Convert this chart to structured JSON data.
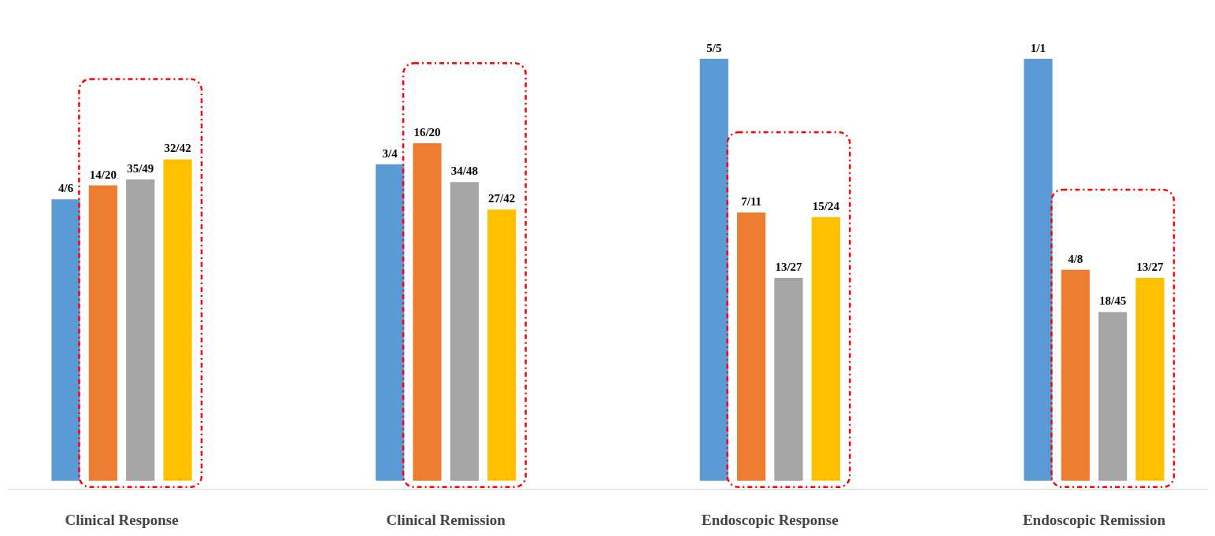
{
  "chart_data": {
    "type": "bar",
    "tick_labels": "x",
    "categories": [
      "Clinical Response",
      "Clinical Remission",
      "Endoscopic Response",
      "Endoscopic Remission"
    ],
    "series": [
      {
        "color": "#5b9bd5",
        "values": [
          0.667,
          0.75,
          1.0,
          1.0
        ],
        "value_labels": [
          "4/6",
          "3/4",
          "5/5",
          "1/1"
        ]
      },
      {
        "color": "#ed7d31",
        "values": [
          0.7,
          0.8,
          0.636,
          0.5
        ],
        "value_labels": [
          "14/20",
          "16/20",
          "7/11",
          "4/8"
        ]
      },
      {
        "color": "#a5a5a5",
        "values": [
          0.714,
          0.708,
          0.481,
          0.4
        ],
        "value_labels": [
          "35/49",
          "34/48",
          "13/27",
          "18/45"
        ]
      },
      {
        "color": "#ffc000",
        "values": [
          0.762,
          0.643,
          0.625,
          0.481
        ],
        "value_labels": [
          "32/42",
          "27/42",
          "15/24",
          "13/27"
        ]
      }
    ]
  }
}
